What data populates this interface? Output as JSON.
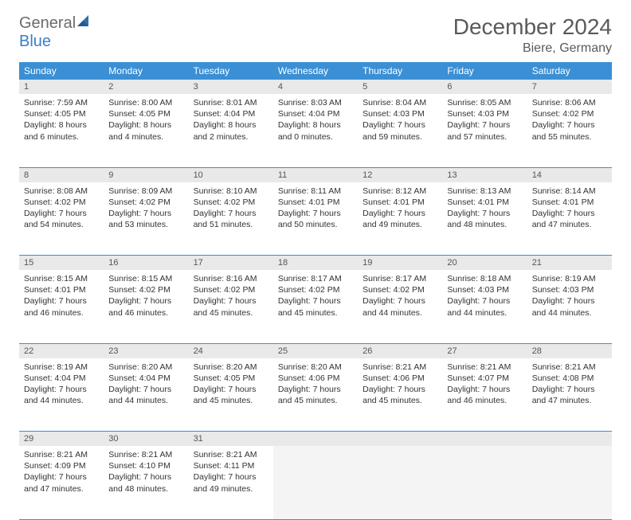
{
  "logo": {
    "text1": "General",
    "text2": "Blue"
  },
  "title": "December 2024",
  "location": "Biere, Germany",
  "colors": {
    "header_bg": "#3b8fd4",
    "header_text": "#ffffff",
    "daynum_bg": "#e9e9e9",
    "border": "#3b8fd4",
    "logo_gray": "#6b6b6b",
    "logo_blue": "#3b7fc4"
  },
  "weekdays": [
    "Sunday",
    "Monday",
    "Tuesday",
    "Wednesday",
    "Thursday",
    "Friday",
    "Saturday"
  ],
  "weeks": [
    [
      {
        "n": "1",
        "sunrise": "7:59 AM",
        "sunset": "4:05 PM",
        "daylight": "8 hours and 6 minutes."
      },
      {
        "n": "2",
        "sunrise": "8:00 AM",
        "sunset": "4:05 PM",
        "daylight": "8 hours and 4 minutes."
      },
      {
        "n": "3",
        "sunrise": "8:01 AM",
        "sunset": "4:04 PM",
        "daylight": "8 hours and 2 minutes."
      },
      {
        "n": "4",
        "sunrise": "8:03 AM",
        "sunset": "4:04 PM",
        "daylight": "8 hours and 0 minutes."
      },
      {
        "n": "5",
        "sunrise": "8:04 AM",
        "sunset": "4:03 PM",
        "daylight": "7 hours and 59 minutes."
      },
      {
        "n": "6",
        "sunrise": "8:05 AM",
        "sunset": "4:03 PM",
        "daylight": "7 hours and 57 minutes."
      },
      {
        "n": "7",
        "sunrise": "8:06 AM",
        "sunset": "4:02 PM",
        "daylight": "7 hours and 55 minutes."
      }
    ],
    [
      {
        "n": "8",
        "sunrise": "8:08 AM",
        "sunset": "4:02 PM",
        "daylight": "7 hours and 54 minutes."
      },
      {
        "n": "9",
        "sunrise": "8:09 AM",
        "sunset": "4:02 PM",
        "daylight": "7 hours and 53 minutes."
      },
      {
        "n": "10",
        "sunrise": "8:10 AM",
        "sunset": "4:02 PM",
        "daylight": "7 hours and 51 minutes."
      },
      {
        "n": "11",
        "sunrise": "8:11 AM",
        "sunset": "4:01 PM",
        "daylight": "7 hours and 50 minutes."
      },
      {
        "n": "12",
        "sunrise": "8:12 AM",
        "sunset": "4:01 PM",
        "daylight": "7 hours and 49 minutes."
      },
      {
        "n": "13",
        "sunrise": "8:13 AM",
        "sunset": "4:01 PM",
        "daylight": "7 hours and 48 minutes."
      },
      {
        "n": "14",
        "sunrise": "8:14 AM",
        "sunset": "4:01 PM",
        "daylight": "7 hours and 47 minutes."
      }
    ],
    [
      {
        "n": "15",
        "sunrise": "8:15 AM",
        "sunset": "4:01 PM",
        "daylight": "7 hours and 46 minutes."
      },
      {
        "n": "16",
        "sunrise": "8:15 AM",
        "sunset": "4:02 PM",
        "daylight": "7 hours and 46 minutes."
      },
      {
        "n": "17",
        "sunrise": "8:16 AM",
        "sunset": "4:02 PM",
        "daylight": "7 hours and 45 minutes."
      },
      {
        "n": "18",
        "sunrise": "8:17 AM",
        "sunset": "4:02 PM",
        "daylight": "7 hours and 45 minutes."
      },
      {
        "n": "19",
        "sunrise": "8:17 AM",
        "sunset": "4:02 PM",
        "daylight": "7 hours and 44 minutes."
      },
      {
        "n": "20",
        "sunrise": "8:18 AM",
        "sunset": "4:03 PM",
        "daylight": "7 hours and 44 minutes."
      },
      {
        "n": "21",
        "sunrise": "8:19 AM",
        "sunset": "4:03 PM",
        "daylight": "7 hours and 44 minutes."
      }
    ],
    [
      {
        "n": "22",
        "sunrise": "8:19 AM",
        "sunset": "4:04 PM",
        "daylight": "7 hours and 44 minutes."
      },
      {
        "n": "23",
        "sunrise": "8:20 AM",
        "sunset": "4:04 PM",
        "daylight": "7 hours and 44 minutes."
      },
      {
        "n": "24",
        "sunrise": "8:20 AM",
        "sunset": "4:05 PM",
        "daylight": "7 hours and 45 minutes."
      },
      {
        "n": "25",
        "sunrise": "8:20 AM",
        "sunset": "4:06 PM",
        "daylight": "7 hours and 45 minutes."
      },
      {
        "n": "26",
        "sunrise": "8:21 AM",
        "sunset": "4:06 PM",
        "daylight": "7 hours and 45 minutes."
      },
      {
        "n": "27",
        "sunrise": "8:21 AM",
        "sunset": "4:07 PM",
        "daylight": "7 hours and 46 minutes."
      },
      {
        "n": "28",
        "sunrise": "8:21 AM",
        "sunset": "4:08 PM",
        "daylight": "7 hours and 47 minutes."
      }
    ],
    [
      {
        "n": "29",
        "sunrise": "8:21 AM",
        "sunset": "4:09 PM",
        "daylight": "7 hours and 47 minutes."
      },
      {
        "n": "30",
        "sunrise": "8:21 AM",
        "sunset": "4:10 PM",
        "daylight": "7 hours and 48 minutes."
      },
      {
        "n": "31",
        "sunrise": "8:21 AM",
        "sunset": "4:11 PM",
        "daylight": "7 hours and 49 minutes."
      },
      null,
      null,
      null,
      null
    ]
  ],
  "labels": {
    "sunrise": "Sunrise: ",
    "sunset": "Sunset: ",
    "daylight": "Daylight: "
  }
}
